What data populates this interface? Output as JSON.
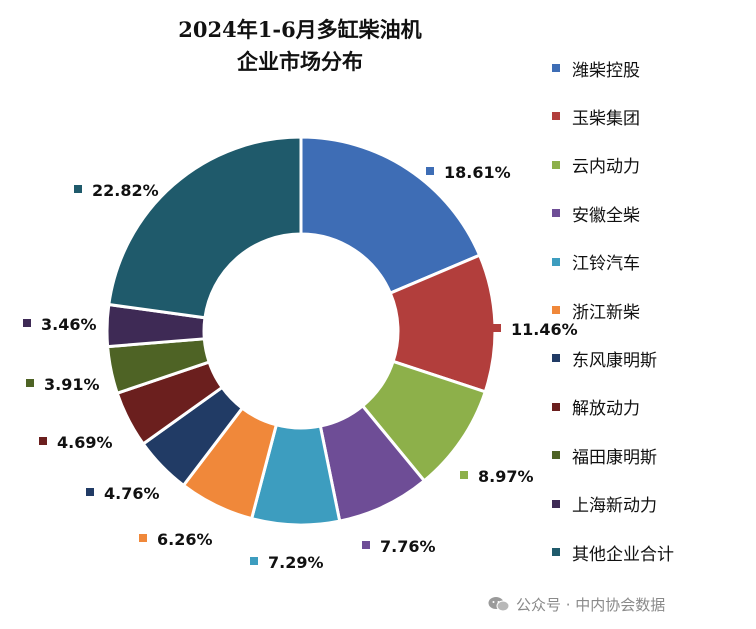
{
  "chart_data": {
    "type": "pie",
    "donut": true,
    "title_line1": "2024年1-6月多缸柴油机",
    "title_line2": "企业市场分布",
    "legend_position": "right",
    "categories": [
      "潍柴控股",
      "玉柴集团",
      "云内动力",
      "安徽全柴",
      "江铃汽车",
      "浙江新柴",
      "东风康明斯",
      "解放动力",
      "福田康明斯",
      "上海新动力",
      "其他企业合计"
    ],
    "values": [
      18.61,
      11.46,
      8.97,
      7.76,
      7.29,
      6.26,
      4.76,
      4.69,
      3.91,
      3.46,
      22.82
    ],
    "value_labels": [
      "18.61%",
      "11.46%",
      "8.97%",
      "7.76%",
      "7.29%",
      "6.26%",
      "4.76%",
      "4.69%",
      "3.91%",
      "3.46%",
      "22.82%"
    ],
    "colors": [
      "#3E6DB5",
      "#B23E3C",
      "#8DB04A",
      "#6E4D96",
      "#3D9DBF",
      "#F0883A",
      "#213B65",
      "#6B1F1E",
      "#4E6325",
      "#3E2A55",
      "#1F5A6B"
    ]
  },
  "watermark": {
    "icon": "wechat-icon",
    "text": "公众号 · 中内协会数据"
  }
}
